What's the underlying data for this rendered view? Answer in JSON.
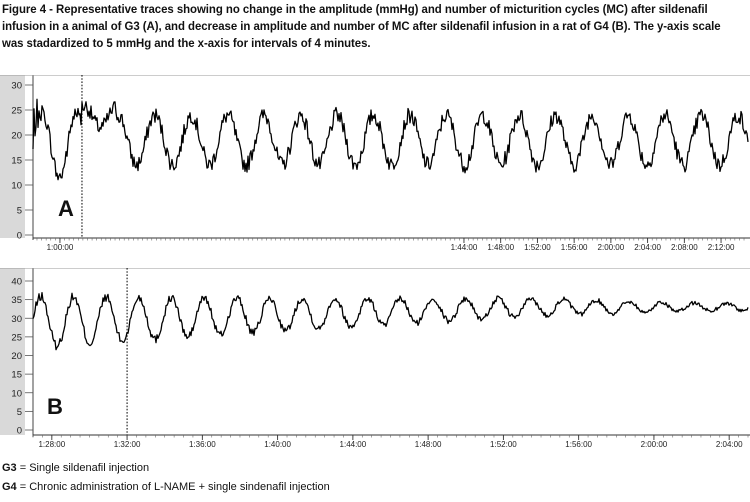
{
  "figure": {
    "caption": "Figure 4 - Representative traces showing no change in the amplitude (mmHg) and number of micturition cycles (MC) after sildenafil infusion in a animal of G3 (A), and decrease in amplitude and number of MC after sildenafil infusion in a rat of G4 (B). The y-axis scale was stadardized to 5 mmHg and the x-axis for intervals of 4 minutes."
  },
  "footnotes": [
    {
      "key": "G3",
      "text": " = Single sildenafil injection"
    },
    {
      "key": "G4",
      "text": " = Chronic administration of L-NAME + single sindenafil injection"
    }
  ],
  "colors": {
    "trace": "#000000",
    "axis_band": "#d9d9d9",
    "grid": "#c8c8c8"
  },
  "chart_data": [
    {
      "type": "line",
      "panel_label": "A",
      "title": "",
      "xlabel": "",
      "ylabel": "",
      "ylim": [
        0,
        30
      ],
      "yticks": [
        0,
        5,
        10,
        15,
        20,
        25,
        30
      ],
      "xlim": [
        "0:57:04",
        "2:14:56"
      ],
      "xtick_labels": [
        "1:00:00",
        "1:44:00",
        "1:48:00",
        "1:52:00",
        "1:56:00",
        "2:00:00",
        "2:04:00",
        "2:08:00",
        "2:12:00"
      ],
      "xtick_min": [
        60,
        104,
        108,
        112,
        116,
        120,
        124,
        128,
        132
      ],
      "infusion_marker_min": 62.4,
      "baseline_mmHg": 19,
      "cycle_amplitude_mmHg": 5,
      "min_mmHg": 10,
      "max_mmHg": 29
    },
    {
      "type": "line",
      "panel_label": "B",
      "title": "",
      "xlabel": "",
      "ylabel": "",
      "ylim": [
        0,
        40
      ],
      "yticks": [
        0,
        5,
        10,
        15,
        20,
        25,
        30,
        35,
        40
      ],
      "xlim": [
        "1:27:00",
        "2:05:00"
      ],
      "xtick_labels": [
        "1:28:00",
        "1:32:00",
        "1:36:00",
        "1:40:00",
        "1:44:00",
        "1:48:00",
        "1:52:00",
        "1:56:00",
        "2:00:00",
        "2:04:00"
      ],
      "xtick_min": [
        88,
        92,
        96,
        100,
        104,
        108,
        112,
        116,
        120,
        124
      ],
      "infusion_marker_min": 92.0,
      "baseline_mmHg_start": 29,
      "baseline_mmHg_end": 33,
      "cycle_amplitude_mmHg_start": 7,
      "cycle_amplitude_mmHg_end": 1,
      "min_mmHg": 20,
      "max_mmHg": 40
    }
  ]
}
